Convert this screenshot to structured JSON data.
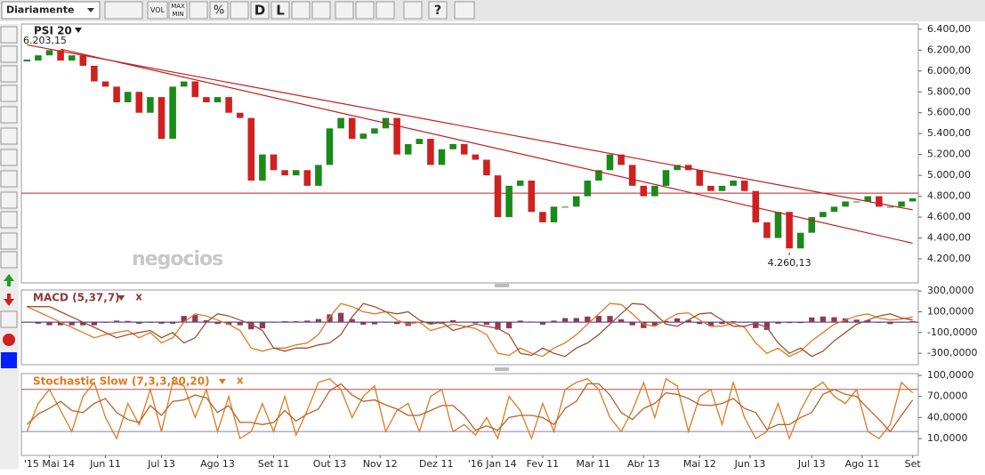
{
  "toolbar": {
    "period": "Diariamente",
    "vol": "VOL",
    "max": "MAX",
    "min": "MIN",
    "percent": "%",
    "d": "D",
    "l": "L",
    "help": "?"
  },
  "chart_data": [
    {
      "type": "candlestick",
      "title": "PSI 20",
      "readout": "6.203,15",
      "watermark": "negocios",
      "up_color": "#1a8a1a",
      "down_color": "#d02020",
      "values": [
        6100,
        6150,
        6200,
        6100,
        6150,
        6050,
        5900,
        5850,
        5700,
        5800,
        5600,
        5750,
        5350,
        5850,
        5900,
        5750,
        5700,
        5750,
        5600,
        5550,
        4950,
        5200,
        5050,
        5000,
        5050,
        4900,
        5100,
        5450,
        5550,
        5350,
        5400,
        5450,
        5550,
        5200,
        5300,
        5350,
        5100,
        5250,
        5300,
        5200,
        5150,
        5000,
        4600,
        4900,
        4950,
        4650,
        4550,
        4700,
        4700,
        4800,
        4950,
        5050,
        5200,
        5100,
        4900,
        4800,
        4900,
        5050,
        5100,
        5050,
        4900,
        4850,
        4900,
        4950,
        4850,
        4550,
        4400,
        4650,
        4300,
        4450,
        4600,
        4650,
        4700,
        4750,
        4750,
        4800,
        4700,
        4700,
        4750,
        4780
      ],
      "ylim": [
        3970,
        6450
      ],
      "yticks": [
        {
          "value": 4200,
          "label": "4.200,00"
        },
        {
          "value": 4400,
          "label": "4.400,00"
        },
        {
          "value": 4600,
          "label": "4.600,00"
        },
        {
          "value": 4800,
          "label": "4.800,00"
        },
        {
          "value": 5000,
          "label": "5.000,00"
        },
        {
          "value": 5200,
          "label": "5.200,00"
        },
        {
          "value": 5400,
          "label": "5.400,00"
        },
        {
          "value": 5600,
          "label": "5.600,00"
        },
        {
          "value": 5800,
          "label": "5.800,00"
        },
        {
          "value": 6000,
          "label": "6.000,00"
        },
        {
          "value": 6200,
          "label": "6.200,00"
        },
        {
          "value": 6400,
          "label": "6.400,00"
        }
      ],
      "hlines": [
        {
          "value": 4830,
          "color": "#c02020"
        }
      ],
      "trendlines": [
        {
          "x": [
            0,
            79
          ],
          "y": [
            6250,
            4670
          ],
          "color": "#c02020"
        },
        {
          "x": [
            3,
            79
          ],
          "y": [
            6210,
            4350
          ],
          "color": "#c02020"
        }
      ],
      "annotations": [
        {
          "x": 68,
          "value": 4260.13,
          "label": "4.260,13"
        }
      ]
    },
    {
      "type": "line",
      "title": "MACD (5,37,7)",
      "close": "x",
      "title_color": "#8b3a3a",
      "ylim": [
        -410000,
        310000
      ],
      "yticks": [
        {
          "value": -300000,
          "label": "-300,0000"
        },
        {
          "value": -100000,
          "label": "-100,0000"
        },
        {
          "value": 100000,
          "label": "100,0000"
        },
        {
          "value": 300000,
          "label": "300,0000"
        }
      ],
      "hlines": [
        {
          "value": 0,
          "color": "#2a2aa0"
        }
      ],
      "histogram": {
        "color": "#8b3a5a",
        "values": [
          0,
          -15000,
          -30000,
          -30000,
          -30000,
          -30000,
          -30000,
          -6000,
          15000,
          12000,
          -15000,
          -6000,
          -15000,
          -15000,
          60000,
          69000,
          18000,
          -18000,
          -24000,
          -30000,
          -69000,
          -60000,
          0,
          9000,
          9000,
          15000,
          30000,
          75000,
          90000,
          30000,
          -24000,
          -21000,
          0,
          -18000,
          -36000,
          -6000,
          -18000,
          -15000,
          18000,
          3000,
          -12000,
          -24000,
          -72000,
          -60000,
          15000,
          6000,
          -24000,
          15000,
          39000,
          39000,
          54000,
          60000,
          60000,
          27000,
          -30000,
          -57000,
          -36000,
          12000,
          36000,
          21000,
          -18000,
          -39000,
          -18000,
          9000,
          -3000,
          -57000,
          -75000,
          -15000,
          -9000,
          -9000,
          45000,
          54000,
          48000,
          36000,
          24000,
          18000,
          -6000,
          -18000,
          -3000,
          9000
        ]
      },
      "series": [
        {
          "color": "#e07a20",
          "values": [
            150000,
            100000,
            50000,
            0,
            -50000,
            -100000,
            -150000,
            -120000,
            -100000,
            -80000,
            -150000,
            -100000,
            -200000,
            -150000,
            0,
            80000,
            60000,
            20000,
            -20000,
            -80000,
            -250000,
            -280000,
            -250000,
            -250000,
            -220000,
            -200000,
            -120000,
            50000,
            180000,
            150000,
            100000,
            80000,
            100000,
            20000,
            -20000,
            0,
            -80000,
            -50000,
            -20000,
            -40000,
            -60000,
            -120000,
            -300000,
            -320000,
            -250000,
            -300000,
            -330000,
            -250000,
            -200000,
            -120000,
            -20000,
            80000,
            180000,
            170000,
            80000,
            -20000,
            -40000,
            20000,
            80000,
            90000,
            20000,
            -40000,
            -40000,
            -10000,
            -50000,
            -200000,
            -300000,
            -250000,
            -330000,
            -280000,
            -180000,
            -100000,
            -20000,
            20000,
            60000,
            80000,
            40000,
            20000,
            30000,
            50000
          ]
        },
        {
          "color": "#a0522d",
          "values": [
            150000,
            150000,
            150000,
            100000,
            50000,
            0,
            -50000,
            -100000,
            -150000,
            -120000,
            -100000,
            -80000,
            -150000,
            -100000,
            -200000,
            -150000,
            0,
            80000,
            60000,
            20000,
            -20000,
            -80000,
            -250000,
            -280000,
            -250000,
            -250000,
            -220000,
            -200000,
            -120000,
            50000,
            180000,
            150000,
            100000,
            80000,
            100000,
            20000,
            -20000,
            0,
            -80000,
            -50000,
            -20000,
            -40000,
            -60000,
            -120000,
            -300000,
            -320000,
            -250000,
            -300000,
            -330000,
            -250000,
            -200000,
            -120000,
            -20000,
            80000,
            180000,
            170000,
            80000,
            -20000,
            -40000,
            20000,
            80000,
            90000,
            20000,
            -40000,
            -40000,
            -10000,
            -50000,
            -200000,
            -300000,
            -250000,
            -330000,
            -280000,
            -180000,
            -100000,
            -20000,
            20000,
            60000,
            80000,
            40000,
            20000
          ]
        }
      ]
    },
    {
      "type": "line",
      "title": "Stochastic Slow (7,3,3,80,20)",
      "close": "x",
      "title_color": "#e07a20",
      "ylim": [
        -14000,
        102500
      ],
      "yticks": [
        {
          "value": 10000,
          "label": "10,0000"
        },
        {
          "value": 40000,
          "label": "40,0000"
        },
        {
          "value": 70000,
          "label": "70,0000"
        },
        {
          "value": 100000,
          "label": "100,0000"
        }
      ],
      "hlines": [
        {
          "value": 80000,
          "color": "#b05050"
        },
        {
          "value": 20000,
          "color": "#8080b0"
        }
      ],
      "series": [
        {
          "color": "#e07a20",
          "values": [
            20000,
            60000,
            80000,
            50000,
            20000,
            70000,
            90000,
            40000,
            10000,
            60000,
            30000,
            80000,
            20000,
            90000,
            85000,
            40000,
            80000,
            20000,
            70000,
            10000,
            20000,
            60000,
            20000,
            70000,
            15000,
            50000,
            90000,
            95000,
            80000,
            40000,
            70000,
            85000,
            20000,
            50000,
            60000,
            20000,
            70000,
            80000,
            20000,
            30000,
            15000,
            40000,
            10000,
            70000,
            50000,
            10000,
            60000,
            20000,
            80000,
            90000,
            95000,
            80000,
            40000,
            20000,
            50000,
            90000,
            40000,
            95000,
            85000,
            20000,
            70000,
            80000,
            30000,
            90000,
            40000,
            10000,
            20000,
            60000,
            10000,
            50000,
            80000,
            90000,
            70000,
            60000,
            80000,
            20000,
            10000,
            30000,
            90000,
            75000
          ]
        },
        {
          "color": "#b5652d",
          "values": [
            30000,
            45000,
            53000,
            63000,
            50000,
            47000,
            60000,
            67000,
            47000,
            37000,
            33000,
            57000,
            43000,
            63000,
            65000,
            72000,
            68000,
            47000,
            57000,
            33000,
            33000,
            30000,
            33000,
            50000,
            35000,
            45000,
            52000,
            78000,
            88000,
            72000,
            63000,
            65000,
            58000,
            52000,
            43000,
            43000,
            50000,
            57000,
            57000,
            43000,
            22000,
            28000,
            22000,
            40000,
            43000,
            43000,
            40000,
            30000,
            53000,
            63000,
            88000,
            88000,
            72000,
            47000,
            37000,
            53000,
            60000,
            75000,
            73000,
            67000,
            58000,
            57000,
            60000,
            67000,
            53000,
            47000,
            23000,
            30000,
            30000,
            40000,
            47000,
            73000,
            80000,
            73000,
            70000,
            53000,
            37000,
            20000,
            43000,
            65000
          ]
        }
      ],
      "xticks": [
        {
          "value": 2,
          "label": "'15 Mai 14"
        },
        {
          "value": 7,
          "label": "Jun 11"
        },
        {
          "value": 12,
          "label": "Jul 13"
        },
        {
          "value": 17,
          "label": "Ago 13"
        },
        {
          "value": 22,
          "label": "Set 11"
        },
        {
          "value": 27,
          "label": "Out 13"
        },
        {
          "value": 31.5,
          "label": "Nov 12"
        },
        {
          "value": 36.5,
          "label": "Dez 11"
        },
        {
          "value": 41.5,
          "label": "'16 Jan 14"
        },
        {
          "value": 46,
          "label": "Fev 11"
        },
        {
          "value": 50.5,
          "label": "Mar 11"
        },
        {
          "value": 55,
          "label": "Abr 13"
        },
        {
          "value": 60,
          "label": "Mai 12"
        },
        {
          "value": 64.5,
          "label": "Jun 13"
        },
        {
          "value": 70,
          "label": "Jul 13"
        },
        {
          "value": 74.5,
          "label": "Ago 11"
        },
        {
          "value": 79,
          "label": "Set"
        }
      ]
    }
  ]
}
